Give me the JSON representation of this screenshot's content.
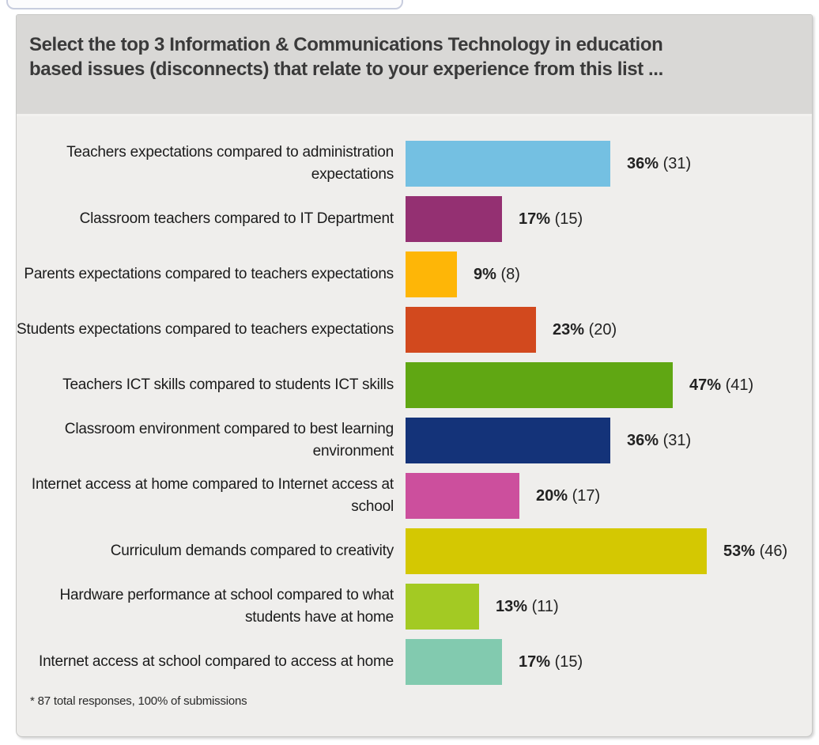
{
  "chart_data": {
    "type": "bar",
    "orientation": "horizontal",
    "title": "Select the top 3 Information & Communications Technology in education based issues (disconnects) that relate to your experience from this list ...",
    "categories": [
      "Teachers expectations compared to administration expectations",
      "Classroom teachers compared to IT Department",
      "Parents expectations compared to teachers expectations",
      "Students expectations compared to teachers expectations",
      "Teachers ICT skills compared to students ICT skills",
      "Classroom environment compared to best learning environment",
      "Internet access at home compared to Internet access at school",
      "Curriculum demands compared to creativity",
      "Hardware performance at school compared to what students have at home",
      "Internet access at school compared to access at home"
    ],
    "values": [
      36,
      17,
      9,
      23,
      47,
      36,
      20,
      53,
      13,
      17
    ],
    "value_unit": "%",
    "counts": [
      31,
      15,
      8,
      20,
      41,
      31,
      17,
      46,
      11,
      15
    ],
    "bar_colors": [
      "#74C0E2",
      "#943072",
      "#FEB607",
      "#D2491E",
      "#60A713",
      "#143379",
      "#CC4F9D",
      "#D4C802",
      "#A3CA23",
      "#82CAAF"
    ],
    "value_label_format": "{value}% ({count})",
    "xlabel": "",
    "ylabel": "",
    "axis_visible": false,
    "grid": false,
    "legend": "none",
    "xlim": [
      0,
      57
    ],
    "footnote": "* 87 total responses, 100% of submissions"
  },
  "colors": {
    "panel_body_bg": "#efeeec",
    "panel_header_bg": "#d9d8d6",
    "panel_border": "#c7c7c5",
    "title_text": "#3a3a3a",
    "label_text": "#1b1b1b",
    "value_text": "#222222",
    "tab_remnant_border": "#c8cdde"
  }
}
